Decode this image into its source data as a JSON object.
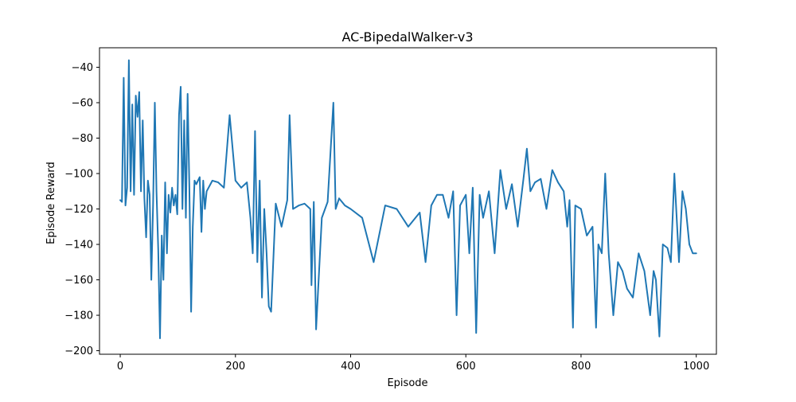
{
  "chart_data": {
    "type": "line",
    "title": "AC-BipedalWalker-v3",
    "xlabel": "Episode",
    "ylabel": "Episode Reward",
    "xlim": [
      -36,
      1035
    ],
    "ylim": [
      -202,
      -29
    ],
    "xticks": [
      0,
      200,
      400,
      600,
      800,
      1000
    ],
    "yticks": [
      -200,
      -180,
      -160,
      -140,
      -120,
      -100,
      -80,
      -60,
      -40
    ],
    "grid": false,
    "line_color": "#1f77b4",
    "series": [
      {
        "name": "",
        "x": [
          0,
          3,
          6,
          9,
          12,
          15,
          18,
          21,
          24,
          27,
          30,
          33,
          36,
          39,
          42,
          45,
          48,
          51,
          54,
          57,
          60,
          63,
          66,
          69,
          72,
          75,
          78,
          81,
          84,
          87,
          90,
          93,
          96,
          99,
          102,
          105,
          108,
          111,
          114,
          117,
          120,
          123,
          126,
          129,
          132,
          135,
          138,
          141,
          144,
          147,
          150,
          160,
          170,
          180,
          190,
          200,
          210,
          220,
          226,
          230,
          234,
          238,
          242,
          246,
          250,
          254,
          258,
          262,
          270,
          280,
          290,
          294,
          300,
          310,
          320,
          330,
          332,
          336,
          340,
          350,
          360,
          370,
          374,
          380,
          390,
          400,
          420,
          440,
          460,
          480,
          500,
          520,
          530,
          540,
          550,
          560,
          570,
          578,
          584,
          590,
          600,
          606,
          612,
          618,
          624,
          630,
          640,
          650,
          660,
          670,
          680,
          690,
          700,
          706,
          712,
          720,
          730,
          740,
          750,
          760,
          770,
          776,
          780,
          786,
          790,
          800,
          810,
          820,
          826,
          830,
          836,
          842,
          848,
          856,
          864,
          872,
          880,
          890,
          900,
          910,
          920,
          926,
          930,
          936,
          942,
          950,
          956,
          962,
          966,
          970,
          976,
          982,
          988,
          994,
          1000
        ],
        "y": [
          -115,
          -116,
          -46,
          -118,
          -108,
          -36,
          -110,
          -61,
          -112,
          -56,
          -68,
          -54,
          -110,
          -70,
          -114,
          -136,
          -104,
          -112,
          -160,
          -118,
          -60,
          -110,
          -143,
          -193,
          -135,
          -160,
          -105,
          -145,
          -112,
          -122,
          -108,
          -118,
          -112,
          -123,
          -67,
          -51,
          -120,
          -70,
          -125,
          -55,
          -108,
          -178,
          -130,
          -104,
          -106,
          -104,
          -102,
          -133,
          -104,
          -120,
          -110,
          -104,
          -105,
          -108,
          -67,
          -104,
          -108,
          -105,
          -125,
          -145,
          -76,
          -150,
          -104,
          -170,
          -120,
          -145,
          -175,
          -178,
          -117,
          -130,
          -115,
          -67,
          -120,
          -118,
          -117,
          -120,
          -163,
          -116,
          -188,
          -125,
          -116,
          -60,
          -120,
          -114,
          -118,
          -120,
          -125,
          -150,
          -118,
          -120,
          -130,
          -122,
          -150,
          -118,
          -112,
          -112,
          -125,
          -110,
          -180,
          -118,
          -112,
          -145,
          -108,
          -190,
          -112,
          -125,
          -110,
          -145,
          -98,
          -120,
          -106,
          -130,
          -103,
          -86,
          -110,
          -105,
          -103,
          -120,
          -98,
          -105,
          -110,
          -130,
          -115,
          -187,
          -118,
          -120,
          -135,
          -130,
          -187,
          -140,
          -145,
          -100,
          -145,
          -180,
          -150,
          -155,
          -165,
          -170,
          -145,
          -155,
          -180,
          -155,
          -160,
          -192,
          -140,
          -142,
          -150,
          -100,
          -125,
          -150,
          -110,
          -120,
          -140,
          -145,
          -145
        ]
      }
    ]
  }
}
